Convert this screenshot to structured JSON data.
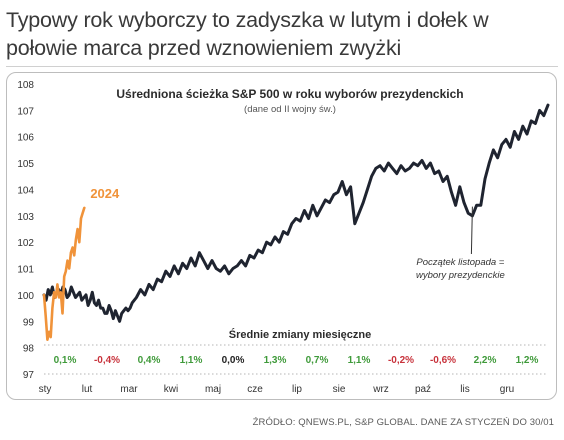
{
  "headline": "Typowy rok wyborczy to zadyszka w lutym i dołek w połowie marca przed wznowieniem zwyżki",
  "source": "ŹRÓDŁO: QNEWS.PL, S&P GLOBAL. DANE ZA STYCZEŃ DO 30/01",
  "chart_data": {
    "type": "line",
    "title": "Uśredniona ścieżka S&P 500 w roku wyborów prezydenckich",
    "subtitle": "(dane od II wojny św.)",
    "xlabel": "",
    "ylabel": "",
    "ylim": [
      97,
      108
    ],
    "yticks": [
      97,
      98,
      99,
      100,
      101,
      102,
      103,
      104,
      105,
      106,
      107,
      108
    ],
    "grid": false,
    "months": [
      "sty",
      "lut",
      "mar",
      "kwi",
      "maj",
      "cze",
      "lip",
      "sie",
      "wrz",
      "paź",
      "lis",
      "gru"
    ],
    "monthly_changes_title": "Średnie zmiany miesięczne",
    "monthly_changes": [
      {
        "label": "0,1%",
        "value": 0.1
      },
      {
        "label": "-0,4%",
        "value": -0.4
      },
      {
        "label": "0,4%",
        "value": 0.4
      },
      {
        "label": "1,1%",
        "value": 1.1
      },
      {
        "label": "0,0%",
        "value": 0.0
      },
      {
        "label": "1,3%",
        "value": 1.3
      },
      {
        "label": "0,7%",
        "value": 0.7
      },
      {
        "label": "1,1%",
        "value": 1.1
      },
      {
        "label": "-0,2%",
        "value": -0.2
      },
      {
        "label": "-0,6%",
        "value": -0.6
      },
      {
        "label": "2,2%",
        "value": 2.2
      },
      {
        "label": "1,2%",
        "value": 1.2
      }
    ],
    "annotation": {
      "line1": "Początek listopada =",
      "line2": "wybory prezydenckie",
      "x": 10.2,
      "y": 103.5
    },
    "series": [
      {
        "name": "",
        "color": "#1f2430",
        "x": [
          0.0,
          0.05,
          0.1,
          0.15,
          0.2,
          0.25,
          0.3,
          0.35,
          0.4,
          0.45,
          0.5,
          0.55,
          0.6,
          0.65,
          0.7,
          0.75,
          0.8,
          0.85,
          0.9,
          0.95,
          1.0,
          1.05,
          1.1,
          1.15,
          1.2,
          1.25,
          1.3,
          1.35,
          1.4,
          1.45,
          1.5,
          1.55,
          1.6,
          1.65,
          1.7,
          1.75,
          1.8,
          1.85,
          1.9,
          1.95,
          2.0,
          2.05,
          2.1,
          2.2,
          2.3,
          2.4,
          2.5,
          2.6,
          2.7,
          2.8,
          2.9,
          3.0,
          3.1,
          3.2,
          3.3,
          3.4,
          3.5,
          3.6,
          3.7,
          3.8,
          3.9,
          4.0,
          4.1,
          4.2,
          4.3,
          4.4,
          4.5,
          4.6,
          4.7,
          4.8,
          4.9,
          5.0,
          5.1,
          5.2,
          5.3,
          5.4,
          5.5,
          5.6,
          5.7,
          5.8,
          5.9,
          6.0,
          6.1,
          6.2,
          6.3,
          6.4,
          6.5,
          6.6,
          6.7,
          6.8,
          6.9,
          7.0,
          7.1,
          7.2,
          7.3,
          7.4,
          7.5,
          7.6,
          7.7,
          7.8,
          7.9,
          8.0,
          8.1,
          8.2,
          8.3,
          8.4,
          8.5,
          8.6,
          8.7,
          8.8,
          8.9,
          9.0,
          9.1,
          9.2,
          9.3,
          9.4,
          9.5,
          9.6,
          9.7,
          9.8,
          9.9,
          10.0,
          10.1,
          10.2,
          10.3,
          10.4,
          10.5,
          10.6,
          10.7,
          10.8,
          10.9,
          11.0,
          11.1,
          11.2,
          11.3,
          11.4,
          11.5,
          11.6,
          11.7,
          11.8,
          11.9,
          12.0
        ],
        "y": [
          100.0,
          99.8,
          100.2,
          100.0,
          100.3,
          99.9,
          100.1,
          100.2,
          100.0,
          100.3,
          100.2,
          99.9,
          100.0,
          100.3,
          100.1,
          99.9,
          100.0,
          100.1,
          99.8,
          99.9,
          100.0,
          99.6,
          99.8,
          100.1,
          99.7,
          99.6,
          99.8,
          99.5,
          99.5,
          99.3,
          99.3,
          99.6,
          99.4,
          99.1,
          99.4,
          99.2,
          99.0,
          99.3,
          99.4,
          99.5,
          99.4,
          99.5,
          99.7,
          99.9,
          100.2,
          100.0,
          100.4,
          100.2,
          100.6,
          100.5,
          100.9,
          100.7,
          101.1,
          100.8,
          101.2,
          101.0,
          101.4,
          101.1,
          101.6,
          101.3,
          101.0,
          101.3,
          101.0,
          100.9,
          101.1,
          100.8,
          101.0,
          101.1,
          101.3,
          101.1,
          101.5,
          101.4,
          101.7,
          101.6,
          102.0,
          101.9,
          102.2,
          102.0,
          102.4,
          102.3,
          102.7,
          102.9,
          102.8,
          103.2,
          102.9,
          103.4,
          103.0,
          103.3,
          103.6,
          103.5,
          103.8,
          103.9,
          104.3,
          103.8,
          104.1,
          102.7,
          103.1,
          103.5,
          104.0,
          104.5,
          104.8,
          104.9,
          104.7,
          105.0,
          104.8,
          104.6,
          104.9,
          104.7,
          104.8,
          105.0,
          104.9,
          105.1,
          104.8,
          105.0,
          104.6,
          104.7,
          104.3,
          104.5,
          103.9,
          103.4,
          104.1,
          103.5,
          103.1,
          103.0,
          103.4,
          103.4,
          104.4,
          105.0,
          105.5,
          105.2,
          105.7,
          105.9,
          105.6,
          106.2,
          105.9,
          106.4,
          106.1,
          106.6,
          106.5,
          107.0,
          106.8,
          107.2
        ]
      },
      {
        "name": "2024",
        "color": "#f0933a",
        "x": [
          0.0,
          0.04,
          0.08,
          0.12,
          0.16,
          0.2,
          0.24,
          0.28,
          0.32,
          0.36,
          0.4,
          0.44,
          0.48,
          0.52,
          0.56,
          0.6,
          0.64,
          0.68,
          0.72,
          0.76,
          0.8,
          0.84,
          0.88,
          0.92,
          0.96
        ],
        "y": [
          100.0,
          99.2,
          98.3,
          98.6,
          98.4,
          99.5,
          100.1,
          99.9,
          100.4,
          99.9,
          100.1,
          99.3,
          100.7,
          100.9,
          101.3,
          101.0,
          101.6,
          101.8,
          101.5,
          102.1,
          102.5,
          102.0,
          102.9,
          103.1,
          103.3
        ]
      }
    ]
  }
}
